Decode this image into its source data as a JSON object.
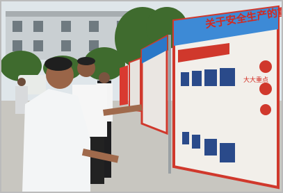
{
  "board": {
    "headline": "关于安全生产的重",
    "section": "大大重点"
  }
}
